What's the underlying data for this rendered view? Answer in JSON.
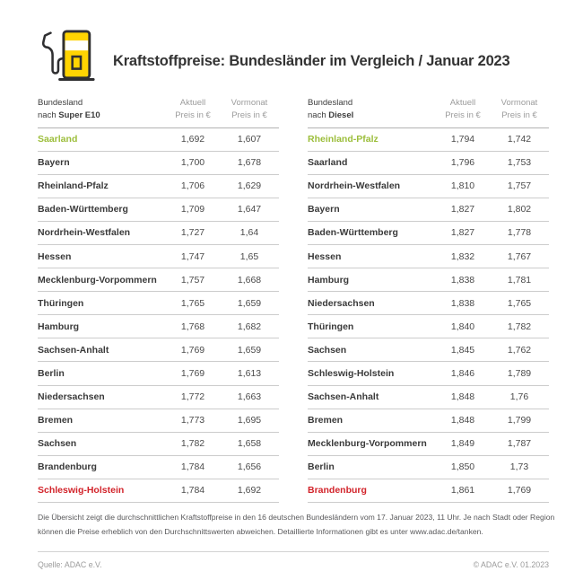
{
  "header": {
    "title": "Kraftstoffpreise: Bundesländer im Vergleich / Januar 2023",
    "icon": "fuel-pump-icon"
  },
  "tables": [
    {
      "col_state_line1": "Bundesland",
      "col_state_prefix": "nach",
      "col_current_line1": "Aktuell",
      "col_current_line2": "Preis in €",
      "col_prev_line1": "Vormonat",
      "col_prev_line2": "Preis in €"
    },
    {
      "col_state_line1": "Bundesland",
      "col_state_prefix": "nach",
      "col_current_line1": "Aktuell",
      "col_current_line2": "Preis in €",
      "col_prev_line1": "Vormonat",
      "col_prev_line2": "Preis in €"
    }
  ],
  "chart_data": [
    {
      "type": "table",
      "title": "Bundesland nach Super E10",
      "fuel": "Super E10",
      "columns": [
        "Bundesland",
        "Aktuell Preis in €",
        "Vormonat Preis in €"
      ],
      "rows": [
        {
          "state": "Saarland",
          "aktuell": "1,692",
          "vormonat": "1,607",
          "color": "green"
        },
        {
          "state": "Bayern",
          "aktuell": "1,700",
          "vormonat": "1,678",
          "color": ""
        },
        {
          "state": "Rheinland-Pfalz",
          "aktuell": "1,706",
          "vormonat": "1,629",
          "color": ""
        },
        {
          "state": "Baden-Württemberg",
          "aktuell": "1,709",
          "vormonat": "1,647",
          "color": ""
        },
        {
          "state": "Nordrhein-Westfalen",
          "aktuell": "1,727",
          "vormonat": "1,64",
          "color": ""
        },
        {
          "state": "Hessen",
          "aktuell": "1,747",
          "vormonat": "1,65",
          "color": ""
        },
        {
          "state": "Mecklenburg-Vorpommern",
          "aktuell": "1,757",
          "vormonat": "1,668",
          "color": ""
        },
        {
          "state": "Thüringen",
          "aktuell": "1,765",
          "vormonat": "1,659",
          "color": ""
        },
        {
          "state": "Hamburg",
          "aktuell": "1,768",
          "vormonat": "1,682",
          "color": ""
        },
        {
          "state": "Sachsen-Anhalt",
          "aktuell": "1,769",
          "vormonat": "1,659",
          "color": ""
        },
        {
          "state": "Berlin",
          "aktuell": "1,769",
          "vormonat": "1,613",
          "color": ""
        },
        {
          "state": "Niedersachsen",
          "aktuell": "1,772",
          "vormonat": "1,663",
          "color": ""
        },
        {
          "state": "Bremen",
          "aktuell": "1,773",
          "vormonat": "1,695",
          "color": ""
        },
        {
          "state": "Sachsen",
          "aktuell": "1,782",
          "vormonat": "1,658",
          "color": ""
        },
        {
          "state": "Brandenburg",
          "aktuell": "1,784",
          "vormonat": "1,656",
          "color": ""
        },
        {
          "state": "Schleswig-Holstein",
          "aktuell": "1,784",
          "vormonat": "1,692",
          "color": "red"
        }
      ]
    },
    {
      "type": "table",
      "title": "Bundesland nach Diesel",
      "fuel": "Diesel",
      "columns": [
        "Bundesland",
        "Aktuell Preis in €",
        "Vormonat Preis in €"
      ],
      "rows": [
        {
          "state": "Rheinland-Pfalz",
          "aktuell": "1,794",
          "vormonat": "1,742",
          "color": "green"
        },
        {
          "state": "Saarland",
          "aktuell": "1,796",
          "vormonat": "1,753",
          "color": ""
        },
        {
          "state": "Nordrhein-Westfalen",
          "aktuell": "1,810",
          "vormonat": "1,757",
          "color": ""
        },
        {
          "state": "Bayern",
          "aktuell": "1,827",
          "vormonat": "1,802",
          "color": ""
        },
        {
          "state": "Baden-Württemberg",
          "aktuell": "1,827",
          "vormonat": "1,778",
          "color": ""
        },
        {
          "state": "Hessen",
          "aktuell": "1,832",
          "vormonat": "1,767",
          "color": ""
        },
        {
          "state": "Hamburg",
          "aktuell": "1,838",
          "vormonat": "1,781",
          "color": ""
        },
        {
          "state": "Niedersachsen",
          "aktuell": "1,838",
          "vormonat": "1,765",
          "color": ""
        },
        {
          "state": "Thüringen",
          "aktuell": "1,840",
          "vormonat": "1,782",
          "color": ""
        },
        {
          "state": "Sachsen",
          "aktuell": "1,845",
          "vormonat": "1,762",
          "color": ""
        },
        {
          "state": "Schleswig-Holstein",
          "aktuell": "1,846",
          "vormonat": "1,789",
          "color": ""
        },
        {
          "state": "Sachsen-Anhalt",
          "aktuell": "1,848",
          "vormonat": "1,76",
          "color": ""
        },
        {
          "state": "Bremen",
          "aktuell": "1,848",
          "vormonat": "1,799",
          "color": ""
        },
        {
          "state": "Mecklenburg-Vorpommern",
          "aktuell": "1,849",
          "vormonat": "1,787",
          "color": ""
        },
        {
          "state": "Berlin",
          "aktuell": "1,850",
          "vormonat": "1,73",
          "color": ""
        },
        {
          "state": "Brandenburg",
          "aktuell": "1,861",
          "vormonat": "1,769",
          "color": "red"
        }
      ]
    }
  ],
  "footnote": {
    "text": "Die Übersicht zeigt die durchschnittlichen Kraftstoffpreise in den 16 deutschen Bundesländern vom 17. Januar 2023, 11 Uhr. Je nach Stadt oder Region können die Preise erheblich von den Durchschnittswerten abweichen. Detaillierte Informationen gibt es unter www.adac.de/tanken."
  },
  "footer": {
    "source": "Quelle: ADAC e.V.",
    "copyright": "© ADAC e.V. 01.2023"
  },
  "colors": {
    "adac_yellow": "#FFD402",
    "outline_dark": "#2F2F31",
    "cheapest_green": "#9CBE3B",
    "most_expensive_red": "#D2232A",
    "text_dark": "#3A3A3A",
    "text_gray": "#9C9C9C",
    "row_divider": "#CCCCCC"
  }
}
